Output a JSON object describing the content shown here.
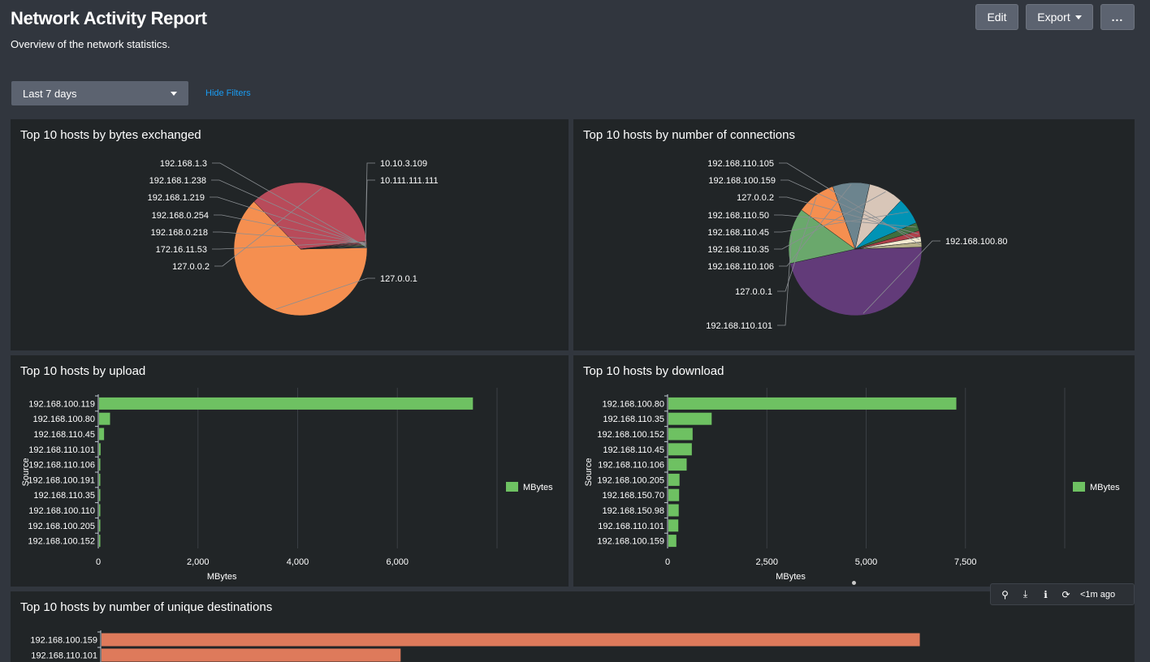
{
  "header": {
    "title": "Network Activity Report",
    "description": "Overview of the network statistics.",
    "edit_label": "Edit",
    "export_label": "Export",
    "more_label": "..."
  },
  "filters": {
    "time_range": "Last 7 days",
    "hide_filters_label": "Hide Filters"
  },
  "toolbar": {
    "refresh_age": "<1m ago"
  },
  "panels": {
    "bytes": {
      "title": "Top 10 hosts by bytes exchanged"
    },
    "connections": {
      "title": "Top 10 hosts by number of connections"
    },
    "upload": {
      "title": "Top 10 hosts by upload"
    },
    "download": {
      "title": "Top 10 hosts by download"
    },
    "destinations": {
      "title": "Top 10 hosts by number of unique destinations"
    }
  },
  "chart_data": [
    {
      "id": "bytes",
      "type": "pie",
      "title": "Top 10 hosts by bytes exchanged",
      "labels": [
        "127.0.0.1",
        "127.0.0.2",
        "172.16.11.53",
        "192.168.0.218",
        "192.168.0.254",
        "192.168.1.219",
        "192.168.1.238",
        "192.168.1.3",
        "10.10.3.109",
        "10.111.111.111"
      ],
      "values": [
        63.0,
        35.4,
        0.3,
        0.25,
        0.2,
        0.2,
        0.2,
        0.15,
        0.15,
        0.15
      ],
      "colors": [
        "#f58f50",
        "#b84b5a",
        "#c25a66",
        "#cd6a76",
        "#d07a84",
        "#d88a92",
        "#7cc36b",
        "#5aa15b",
        "#e0e0e0",
        "#a0c4e0"
      ]
    },
    {
      "id": "connections",
      "type": "pie",
      "title": "Top 10 hosts by number of connections",
      "labels": [
        "192.168.100.80",
        "192.168.110.101",
        "127.0.0.1",
        "192.168.110.106",
        "192.168.110.35",
        "192.168.110.45",
        "192.168.110.50",
        "127.0.0.2",
        "192.168.100.159",
        "192.168.110.105"
      ],
      "values": [
        47.0,
        13.5,
        9.5,
        9.0,
        8.5,
        6.5,
        2.0,
        1.5,
        1.3,
        1.2
      ],
      "colors": [
        "#623b79",
        "#6aa86c",
        "#f58f50",
        "#6c848e",
        "#d8c6b8",
        "#0093b5",
        "#3e6f3e",
        "#b0404a",
        "#f3ead0",
        "#b7b08a"
      ]
    },
    {
      "id": "upload",
      "type": "bar",
      "orientation": "horizontal",
      "title": "Top 10 hosts by upload",
      "categories": [
        "192.168.100.119",
        "192.168.100.80",
        "192.168.110.45",
        "192.168.110.101",
        "192.168.110.106",
        "192.168.100.191",
        "192.168.110.35",
        "192.168.100.110",
        "192.168.100.205",
        "192.168.100.152"
      ],
      "series": [
        {
          "name": "MBytes",
          "values": [
            7500,
            220,
            100,
            30,
            25,
            20,
            15,
            10,
            8,
            5
          ]
        }
      ],
      "xlim": [
        0,
        8000
      ],
      "xticks": [
        "0",
        "2,000",
        "4,000",
        "6,000"
      ],
      "xtick_values": [
        0,
        2000,
        4000,
        6000
      ],
      "xlabel": "MBytes",
      "ylabel": "Source",
      "color": "#6ec162",
      "legend": "right"
    },
    {
      "id": "download",
      "type": "bar",
      "orientation": "horizontal",
      "title": "Top 10 hosts by download",
      "categories": [
        "192.168.100.80",
        "192.168.110.35",
        "192.168.100.152",
        "192.168.110.45",
        "192.168.110.106",
        "192.168.100.205",
        "192.168.150.70",
        "192.168.150.98",
        "192.168.110.101",
        "192.168.100.159"
      ],
      "series": [
        {
          "name": "MBytes",
          "values": [
            7250,
            1090,
            610,
            590,
            460,
            280,
            270,
            260,
            250,
            200
          ]
        }
      ],
      "xlim": [
        0,
        10000
      ],
      "xticks": [
        "0",
        "2,500",
        "5,000",
        "7,500"
      ],
      "xtick_values": [
        0,
        2500,
        5000,
        7500
      ],
      "xlabel": "MBytes",
      "ylabel": "Source",
      "color": "#6ec162",
      "legend": "right"
    },
    {
      "id": "destinations",
      "type": "bar",
      "orientation": "horizontal",
      "title": "Top 10 hosts by number of unique destinations",
      "categories": [
        "192.168.100.159",
        "192.168.110.101"
      ],
      "series": [
        {
          "name": "",
          "values": [
            1045,
            382
          ]
        }
      ],
      "xlim": [
        0,
        1200
      ],
      "color": "#de7a5b"
    }
  ]
}
